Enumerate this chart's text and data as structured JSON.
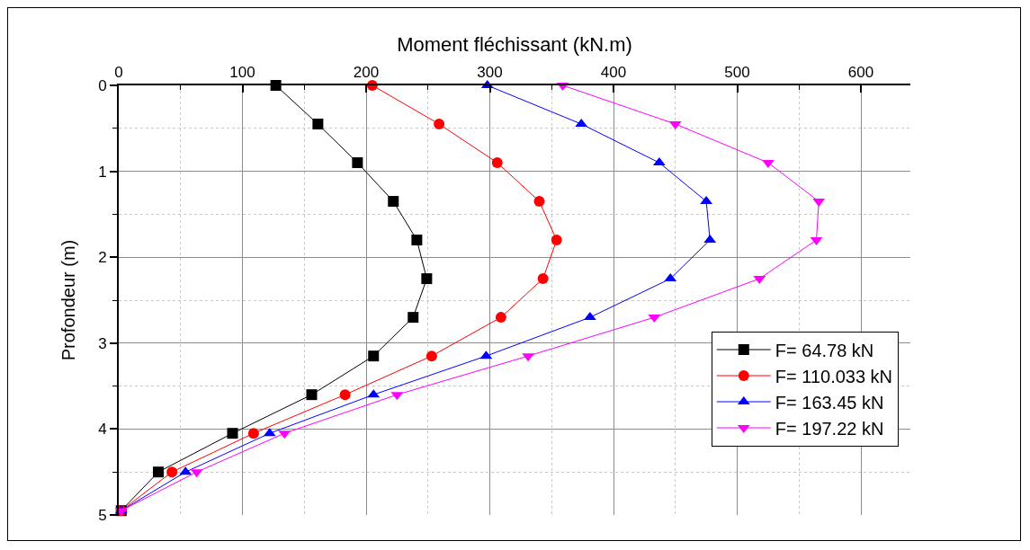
{
  "chart_data": {
    "type": "line",
    "xlabel": "Moment fléchissant (kN.m)",
    "ylabel": "Profondeur (m)",
    "xlim": [
      0,
      640
    ],
    "xticks": [
      0,
      100,
      200,
      300,
      400,
      500,
      600
    ],
    "ylim": [
      5,
      0
    ],
    "yticks": [
      0,
      1,
      2,
      3,
      4,
      5
    ],
    "grid": true,
    "legend": "bottom right",
    "line_style": "solid",
    "series": [
      {
        "name": "F= 64.78 kN",
        "color": "#000000",
        "marker": "square",
        "x": [
          127,
          161,
          193,
          222,
          241,
          249,
          238,
          206,
          156,
          92,
          32,
          2
        ],
        "values": [
          0,
          0.45,
          0.9,
          1.35,
          1.8,
          2.25,
          2.7,
          3.15,
          3.6,
          4.05,
          4.5,
          4.95
        ]
      },
      {
        "name": "F= 110.033 kN",
        "color": "#ff0000",
        "marker": "circle",
        "x": [
          205,
          259,
          306,
          340,
          354,
          343,
          309,
          253,
          183,
          109,
          43,
          2
        ],
        "values": [
          0,
          0.45,
          0.9,
          1.35,
          1.8,
          2.25,
          2.7,
          3.15,
          3.6,
          4.05,
          4.5,
          4.95
        ]
      },
      {
        "name": "F= 163.45 kN",
        "color": "#0000ff",
        "marker": "triangle",
        "x": [
          298,
          374,
          437,
          475,
          478,
          446,
          381,
          297,
          206,
          122,
          54,
          2
        ],
        "values": [
          0,
          0.45,
          0.9,
          1.35,
          1.8,
          2.25,
          2.7,
          3.15,
          3.6,
          4.05,
          4.5,
          4.95
        ]
      },
      {
        "name": "F= 197.22 kN",
        "color": "#ff00ff",
        "marker": "triangle-down",
        "x": [
          359,
          450,
          525,
          566,
          564,
          518,
          433,
          331,
          225,
          134,
          63,
          2
        ],
        "values": [
          0,
          0.45,
          0.9,
          1.35,
          1.8,
          2.25,
          2.7,
          3.15,
          3.6,
          4.05,
          4.5,
          4.95
        ]
      }
    ]
  }
}
